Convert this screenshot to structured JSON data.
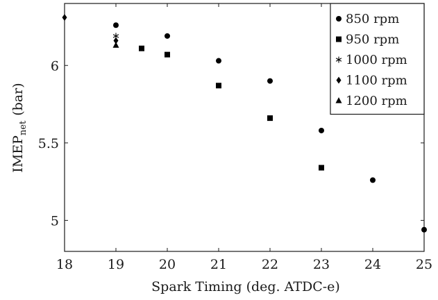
{
  "chart_data": {
    "type": "scatter",
    "xlabel": "Spark Timing (deg. ATDC-e)",
    "ylabel_main": "IMEP",
    "ylabel_sub": "net",
    "ylabel_unit": "(bar)",
    "xlim": [
      18,
      25
    ],
    "ylim": [
      4.8,
      6.4
    ],
    "x_ticks": [
      18,
      19,
      20,
      21,
      22,
      23,
      24,
      25
    ],
    "y_ticks": [
      5,
      5.5,
      6
    ],
    "y_tick_labels": [
      "5",
      "5.5",
      "6"
    ],
    "grid": false,
    "legend_position": "top-right",
    "series": [
      {
        "name": "850 rpm",
        "marker": "circle",
        "points": [
          [
            19,
            6.26
          ],
          [
            20,
            6.19
          ],
          [
            21,
            6.03
          ],
          [
            22,
            5.9
          ],
          [
            23,
            5.58
          ],
          [
            24,
            5.26
          ],
          [
            25,
            4.94
          ]
        ]
      },
      {
        "name": "950 rpm",
        "marker": "square",
        "points": [
          [
            19.5,
            6.11
          ],
          [
            20,
            6.07
          ],
          [
            21,
            5.87
          ],
          [
            22,
            5.66
          ],
          [
            23,
            5.34
          ]
        ]
      },
      {
        "name": "1000 rpm",
        "marker": "star",
        "points": [
          [
            19,
            6.19
          ]
        ]
      },
      {
        "name": "1100 rpm",
        "marker": "diamond",
        "points": [
          [
            18,
            6.31
          ],
          [
            19,
            6.16
          ]
        ]
      },
      {
        "name": "1200 rpm",
        "marker": "triangle",
        "points": [
          [
            19,
            6.13
          ]
        ]
      }
    ]
  }
}
